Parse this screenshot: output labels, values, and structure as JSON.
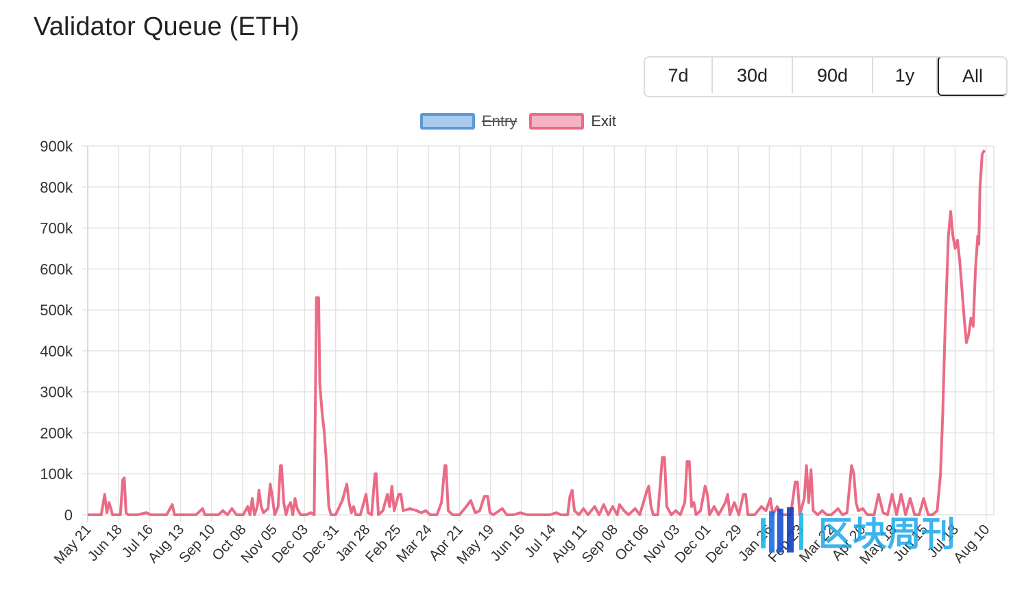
{
  "header": {
    "title": "Validator Queue (ETH)"
  },
  "range_selector": {
    "options": [
      {
        "label": "7d",
        "active": false
      },
      {
        "label": "30d",
        "active": false
      },
      {
        "label": "90d",
        "active": false
      },
      {
        "label": "1y",
        "active": false
      },
      {
        "label": "All",
        "active": true
      }
    ]
  },
  "legend": {
    "items": [
      {
        "label": "Entry",
        "hidden": true,
        "color": "#5b9bd5",
        "fill": "#a9cbf0"
      },
      {
        "label": "Exit",
        "hidden": false,
        "color": "#eb6b86",
        "fill": "#f4b3c1"
      }
    ]
  },
  "watermark": {
    "text": "区块周刊"
  },
  "chart_data": {
    "type": "line",
    "series": [
      {
        "name": "Entry",
        "hidden": true,
        "color": "#5b9bd5",
        "values": []
      },
      {
        "name": "Exit",
        "hidden": false,
        "color": "#eb6b86"
      }
    ],
    "x_tick_labels": [
      "May 21",
      "Jun 18",
      "Jul 16",
      "Aug 13",
      "Sep 10",
      "Oct 08",
      "Nov 05",
      "Dec 03",
      "Dec 31",
      "Jan 28",
      "Feb 25",
      "Mar 24",
      "Apr 21",
      "May 19",
      "Jun 16",
      "Jul 14",
      "Aug 11",
      "Sep 08",
      "Oct 06",
      "Nov 03",
      "Dec 01",
      "Dec 29",
      "Jan 26",
      "Feb 23",
      "Mar 22",
      "Apr 20",
      "May 18",
      "Jun 15",
      "Jul 13",
      "Aug 10"
    ],
    "y_tick_labels": [
      "0",
      "100k",
      "200k",
      "300k",
      "400k",
      "500k",
      "600k",
      "700k",
      "800k",
      "900k"
    ],
    "ylim": [
      0,
      900000
    ],
    "grid": true,
    "legend_position": "top-center",
    "exit_values": [
      [
        0,
        0
      ],
      [
        0.6,
        0
      ],
      [
        0.75,
        50000
      ],
      [
        0.85,
        5000
      ],
      [
        0.95,
        30000
      ],
      [
        1.1,
        0
      ],
      [
        1.3,
        0
      ],
      [
        1.45,
        0
      ],
      [
        1.55,
        85000
      ],
      [
        1.62,
        90000
      ],
      [
        1.7,
        5000
      ],
      [
        1.8,
        0
      ],
      [
        2.2,
        0
      ],
      [
        2.6,
        5000
      ],
      [
        2.8,
        0
      ],
      [
        3.1,
        0
      ],
      [
        3.5,
        0
      ],
      [
        3.75,
        25000
      ],
      [
        3.85,
        0
      ],
      [
        4.3,
        0
      ],
      [
        4.8,
        0
      ],
      [
        5.1,
        15000
      ],
      [
        5.2,
        0
      ],
      [
        5.8,
        0
      ],
      [
        6.0,
        10000
      ],
      [
        6.2,
        0
      ],
      [
        6.4,
        15000
      ],
      [
        6.6,
        0
      ],
      [
        6.9,
        0
      ],
      [
        7.1,
        20000
      ],
      [
        7.2,
        0
      ],
      [
        7.3,
        40000
      ],
      [
        7.4,
        0
      ],
      [
        7.5,
        15000
      ],
      [
        7.55,
        30000
      ],
      [
        7.6,
        60000
      ],
      [
        7.7,
        20000
      ],
      [
        7.8,
        5000
      ],
      [
        8.0,
        15000
      ],
      [
        8.1,
        75000
      ],
      [
        8.2,
        40000
      ],
      [
        8.3,
        0
      ],
      [
        8.45,
        20000
      ],
      [
        8.55,
        120000
      ],
      [
        8.6,
        120000
      ],
      [
        8.7,
        30000
      ],
      [
        8.8,
        0
      ],
      [
        8.9,
        20000
      ],
      [
        9.0,
        30000
      ],
      [
        9.1,
        0
      ],
      [
        9.2,
        40000
      ],
      [
        9.3,
        15000
      ],
      [
        9.45,
        0
      ],
      [
        9.7,
        0
      ],
      [
        9.9,
        5000
      ],
      [
        10.05,
        0
      ],
      [
        10.15,
        530000
      ],
      [
        10.25,
        530000
      ],
      [
        10.3,
        320000
      ],
      [
        10.4,
        250000
      ],
      [
        10.5,
        200000
      ],
      [
        10.6,
        120000
      ],
      [
        10.7,
        20000
      ],
      [
        10.8,
        0
      ],
      [
        11.0,
        0
      ],
      [
        11.3,
        35000
      ],
      [
        11.5,
        75000
      ],
      [
        11.6,
        30000
      ],
      [
        11.7,
        5000
      ],
      [
        11.8,
        20000
      ],
      [
        11.9,
        0
      ],
      [
        12.1,
        0
      ],
      [
        12.35,
        50000
      ],
      [
        12.45,
        5000
      ],
      [
        12.6,
        0
      ],
      [
        12.75,
        100000
      ],
      [
        12.8,
        100000
      ],
      [
        12.9,
        0
      ],
      [
        13.1,
        10000
      ],
      [
        13.3,
        50000
      ],
      [
        13.4,
        20000
      ],
      [
        13.5,
        70000
      ],
      [
        13.6,
        10000
      ],
      [
        13.7,
        30000
      ],
      [
        13.8,
        50000
      ],
      [
        13.9,
        50000
      ],
      [
        14.0,
        10000
      ],
      [
        14.3,
        15000
      ],
      [
        14.6,
        10000
      ],
      [
        14.8,
        5000
      ],
      [
        15.0,
        10000
      ],
      [
        15.2,
        0
      ],
      [
        15.5,
        0
      ],
      [
        15.7,
        30000
      ],
      [
        15.85,
        120000
      ],
      [
        15.9,
        120000
      ],
      [
        16.0,
        10000
      ],
      [
        16.2,
        0
      ],
      [
        16.5,
        0
      ],
      [
        16.8,
        20000
      ],
      [
        17.0,
        35000
      ],
      [
        17.2,
        5000
      ],
      [
        17.4,
        10000
      ],
      [
        17.6,
        45000
      ],
      [
        17.75,
        45000
      ],
      [
        17.85,
        5000
      ],
      [
        18.0,
        0
      ],
      [
        18.4,
        15000
      ],
      [
        18.6,
        0
      ],
      [
        18.9,
        0
      ],
      [
        19.2,
        5000
      ],
      [
        19.5,
        0
      ],
      [
        20.0,
        0
      ],
      [
        20.5,
        0
      ],
      [
        20.8,
        5000
      ],
      [
        21.0,
        0
      ],
      [
        21.3,
        0
      ],
      [
        21.4,
        45000
      ],
      [
        21.5,
        60000
      ],
      [
        21.6,
        10000
      ],
      [
        21.8,
        0
      ],
      [
        22.0,
        15000
      ],
      [
        22.2,
        0
      ],
      [
        22.5,
        20000
      ],
      [
        22.7,
        0
      ],
      [
        22.9,
        25000
      ],
      [
        23.1,
        0
      ],
      [
        23.3,
        20000
      ],
      [
        23.5,
        0
      ],
      [
        23.6,
        25000
      ],
      [
        23.8,
        10000
      ],
      [
        24.0,
        0
      ],
      [
        24.3,
        15000
      ],
      [
        24.5,
        0
      ],
      [
        24.8,
        55000
      ],
      [
        24.9,
        70000
      ],
      [
        25.0,
        20000
      ],
      [
        25.1,
        0
      ],
      [
        25.3,
        0
      ],
      [
        25.5,
        140000
      ],
      [
        25.6,
        140000
      ],
      [
        25.7,
        20000
      ],
      [
        25.9,
        0
      ],
      [
        26.1,
        10000
      ],
      [
        26.3,
        0
      ],
      [
        26.5,
        30000
      ],
      [
        26.6,
        130000
      ],
      [
        26.7,
        130000
      ],
      [
        26.8,
        20000
      ],
      [
        26.9,
        30000
      ],
      [
        27.0,
        0
      ],
      [
        27.2,
        10000
      ],
      [
        27.4,
        70000
      ],
      [
        27.5,
        50000
      ],
      [
        27.6,
        0
      ],
      [
        27.8,
        20000
      ],
      [
        28.0,
        0
      ],
      [
        28.3,
        30000
      ],
      [
        28.4,
        50000
      ],
      [
        28.5,
        0
      ],
      [
        28.7,
        30000
      ],
      [
        28.9,
        0
      ],
      [
        29.1,
        50000
      ],
      [
        29.2,
        50000
      ],
      [
        29.3,
        0
      ],
      [
        29.6,
        0
      ],
      [
        29.9,
        20000
      ],
      [
        30.1,
        10000
      ],
      [
        30.3,
        40000
      ],
      [
        30.4,
        0
      ],
      [
        30.6,
        20000
      ],
      [
        30.8,
        0
      ],
      [
        31.0,
        0
      ],
      [
        31.2,
        0
      ],
      [
        31.4,
        80000
      ],
      [
        31.5,
        80000
      ],
      [
        31.6,
        0
      ],
      [
        31.8,
        40000
      ],
      [
        31.9,
        120000
      ],
      [
        32.0,
        30000
      ],
      [
        32.1,
        110000
      ],
      [
        32.2,
        10000
      ],
      [
        32.4,
        0
      ],
      [
        32.6,
        10000
      ],
      [
        32.8,
        0
      ],
      [
        33.0,
        0
      ],
      [
        33.3,
        15000
      ],
      [
        33.5,
        0
      ],
      [
        33.7,
        5000
      ],
      [
        33.9,
        120000
      ],
      [
        34.0,
        100000
      ],
      [
        34.1,
        30000
      ],
      [
        34.2,
        10000
      ],
      [
        34.4,
        15000
      ],
      [
        34.6,
        0
      ],
      [
        34.9,
        0
      ],
      [
        35.1,
        50000
      ],
      [
        35.3,
        5000
      ],
      [
        35.5,
        0
      ],
      [
        35.7,
        50000
      ],
      [
        35.9,
        0
      ],
      [
        36.1,
        50000
      ],
      [
        36.3,
        0
      ],
      [
        36.5,
        40000
      ],
      [
        36.7,
        0
      ],
      [
        36.9,
        0
      ],
      [
        37.1,
        40000
      ],
      [
        37.3,
        0
      ],
      [
        37.5,
        0
      ],
      [
        37.7,
        10000
      ],
      [
        37.85,
        100000
      ],
      [
        37.95,
        250000
      ],
      [
        38.05,
        450000
      ],
      [
        38.2,
        680000
      ],
      [
        38.3,
        740000
      ],
      [
        38.4,
        680000
      ],
      [
        38.5,
        650000
      ],
      [
        38.6,
        670000
      ],
      [
        38.7,
        620000
      ],
      [
        38.8,
        550000
      ],
      [
        38.9,
        480000
      ],
      [
        39.0,
        420000
      ],
      [
        39.1,
        440000
      ],
      [
        39.2,
        480000
      ],
      [
        39.3,
        460000
      ],
      [
        39.4,
        600000
      ],
      [
        39.5,
        680000
      ],
      [
        39.55,
        660000
      ],
      [
        39.6,
        800000
      ],
      [
        39.7,
        880000
      ],
      [
        39.8,
        890000
      ]
    ]
  }
}
